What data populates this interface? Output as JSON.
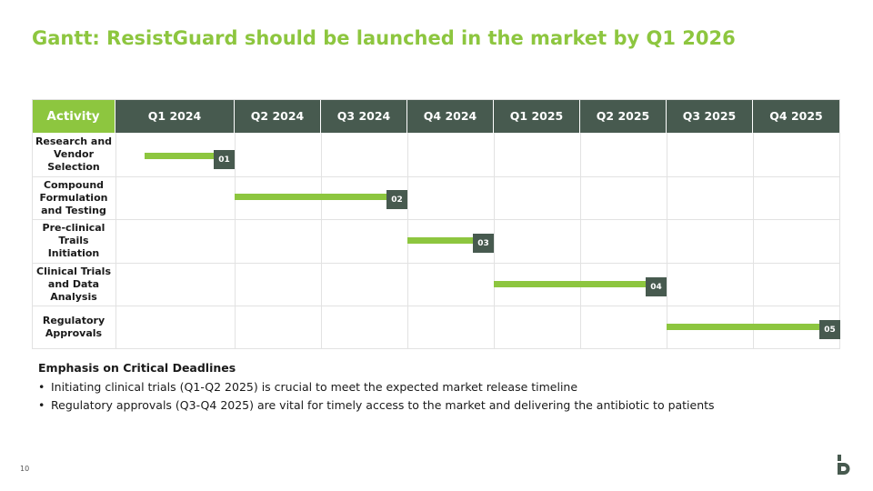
{
  "title": "Gantt: ResistGuard should be launched in the market by Q1 2026",
  "header": {
    "activity_label": "Activity",
    "quarters": [
      "Q1 2024",
      "Q2 2024",
      "Q3 2024",
      "Q4 2024",
      "Q1 2025",
      "Q2 2025",
      "Q3 2025",
      "Q4 2025"
    ]
  },
  "activities": [
    {
      "name": "Research and Vendor Selection",
      "label_lines": [
        "Research and",
        "Vendor",
        "Selection"
      ],
      "marker": "01",
      "start": 0.25,
      "end": 1.0
    },
    {
      "name": "Compound Formulation and Testing",
      "label_lines": [
        "Compound",
        "Formulation",
        "and Testing"
      ],
      "marker": "02",
      "start": 1.0,
      "end": 3.0
    },
    {
      "name": "Pre-clinical Trails Initiation",
      "label_lines": [
        "Pre-clinical",
        "Trails Initiation"
      ],
      "marker": "03",
      "start": 3.0,
      "end": 4.0
    },
    {
      "name": "Clinical Trials and Data Analysis",
      "label_lines": [
        "Clinical Trials",
        "and Data",
        "Analysis"
      ],
      "marker": "04",
      "start": 4.0,
      "end": 6.0
    },
    {
      "name": "Regulatory Approvals",
      "label_lines": [
        "Regulatory",
        "Approvals"
      ],
      "marker": "05",
      "start": 6.0,
      "end": 8.0
    }
  ],
  "notes": {
    "heading": "Emphasis on Critical Deadlines",
    "bullets": [
      "Initiating clinical trials (Q1-Q2 2025) is crucial to meet the expected market release timeline",
      "Regulatory approvals (Q3-Q4 2025) are vital for timely access to the market and delivering the antibiotic to patients"
    ]
  },
  "page_number": "10",
  "colors": {
    "accent_green": "#8dc63f",
    "header_dark": "#475a4f",
    "grid": "#e2e2e2"
  },
  "icons": {
    "logo": "brand-logo-icon"
  }
}
